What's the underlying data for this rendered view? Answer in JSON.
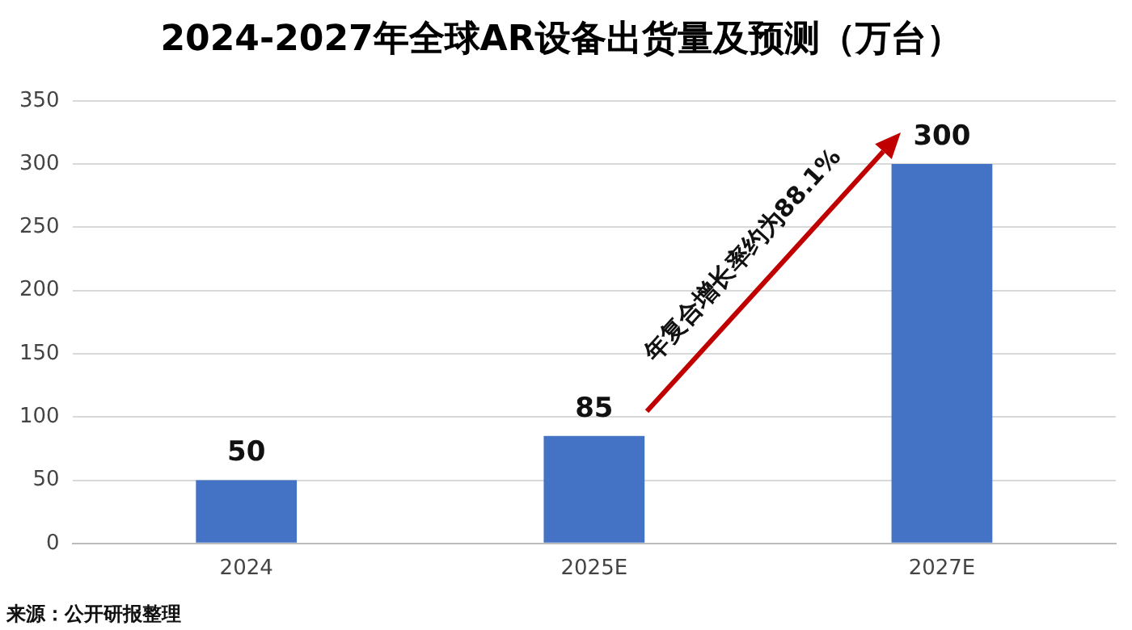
{
  "chart_data": {
    "type": "bar",
    "title": "2024-2027年全球AR设备出货量及预测（万台）",
    "categories": [
      "2024",
      "2025E",
      "2027E"
    ],
    "values": [
      50,
      85,
      300
    ],
    "color": "#4472c4",
    "ylim": [
      0,
      350
    ],
    "yticks": [
      0,
      50,
      100,
      150,
      200,
      250,
      300,
      350
    ],
    "grid": "y",
    "legend": false,
    "data_labels": true,
    "annotations": [
      "年复合增长率约为88.1%",
      "来源：公开研报整理"
    ]
  }
}
